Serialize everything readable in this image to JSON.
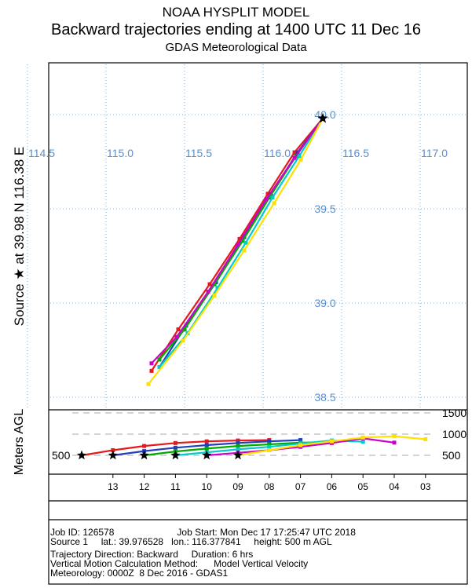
{
  "header": {
    "line1": "NOAA HYSPLIT MODEL",
    "line2": "Backward trajectories ending at 1400 UTC 11 Dec 16",
    "line3": "GDAS Meteorological Data"
  },
  "map_ylabel": "Source ★ at 39.98 N 116.38 E",
  "height_ylabel": "Meters AGL",
  "info": {
    "line1": "Job ID: 126578                        Job Start: Mon Dec 17 17:25:47 UTC 2018",
    "line2": "Source 1     lat.: 39.976528   lon.: 116.377841     height: 500 m AGL",
    "line3": "Trajectory Direction: Backward     Duration: 6 hrs",
    "line4": "Vertical Motion Calculation Method:      Model Vertical Velocity",
    "line5": "Meteorology: 0000Z  8 Dec 2016 - GDAS1"
  },
  "chart_data": [
    {
      "type": "line",
      "name": "trajectory map",
      "lon_ticks": [
        "114.5",
        "115.0",
        "115.5",
        "116.0",
        "116.5",
        "117.0"
      ],
      "lat_ticks": [
        "40.0",
        "39.5",
        "39.0",
        "38.5"
      ],
      "source": {
        "lon": 116.38,
        "lat": 39.98
      },
      "series": [
        {
          "color": "#e41a1c",
          "points": [
            [
              116.38,
              39.98
            ],
            [
              116.2,
              39.8
            ],
            [
              116.03,
              39.58
            ],
            [
              115.85,
              39.34
            ],
            [
              115.66,
              39.1
            ],
            [
              115.46,
              38.86
            ],
            [
              115.29,
              38.64
            ]
          ]
        },
        {
          "color": "#1f3fbf",
          "points": [
            [
              116.38,
              39.98
            ],
            [
              116.22,
              39.8
            ],
            [
              116.05,
              39.58
            ],
            [
              115.88,
              39.35
            ],
            [
              115.7,
              39.11
            ],
            [
              115.51,
              38.88
            ],
            [
              115.34,
              38.66
            ]
          ]
        },
        {
          "color": "#00aa00",
          "points": [
            [
              116.38,
              39.98
            ],
            [
              116.21,
              39.78
            ],
            [
              116.04,
              39.56
            ],
            [
              115.87,
              39.33
            ],
            [
              115.69,
              39.1
            ],
            [
              115.5,
              38.86
            ],
            [
              115.34,
              38.7
            ]
          ]
        },
        {
          "color": "#00cccc",
          "points": [
            [
              116.38,
              39.98
            ],
            [
              116.23,
              39.78
            ],
            [
              116.06,
              39.56
            ],
            [
              115.89,
              39.32
            ],
            [
              115.71,
              39.08
            ],
            [
              115.52,
              38.84
            ],
            [
              115.34,
              38.66
            ]
          ]
        },
        {
          "color": "#cc00cc",
          "points": [
            [
              116.38,
              39.98
            ],
            [
              116.2,
              39.77
            ],
            [
              116.02,
              39.55
            ],
            [
              115.84,
              39.31
            ],
            [
              115.65,
              39.06
            ],
            [
              115.45,
              38.82
            ],
            [
              115.29,
              38.68
            ]
          ]
        },
        {
          "color": "#ffe100",
          "points": [
            [
              116.38,
              39.98
            ],
            [
              116.24,
              39.76
            ],
            [
              116.07,
              39.53
            ],
            [
              115.88,
              39.28
            ],
            [
              115.69,
              39.04
            ],
            [
              115.49,
              38.8
            ],
            [
              115.27,
              38.57
            ]
          ]
        }
      ]
    },
    {
      "type": "line",
      "name": "height profile",
      "ylabel": "Meters AGL",
      "y_ticks": [
        "500",
        "1000",
        "1500"
      ],
      "y_tick_left": "500",
      "hour_labels": [
        "13",
        "12",
        "11",
        "10",
        "09",
        "08",
        "07",
        "06",
        "05",
        "04",
        "03"
      ],
      "series": [
        {
          "color": "#e41a1c",
          "start": 0,
          "values": [
            500,
            620,
            720,
            790,
            830,
            850,
            860
          ]
        },
        {
          "color": "#1f3fbf",
          "start": 1,
          "values": [
            500,
            600,
            680,
            740,
            790,
            830,
            860
          ]
        },
        {
          "color": "#00aa00",
          "start": 2,
          "values": [
            500,
            590,
            660,
            720,
            760,
            800,
            810
          ]
        },
        {
          "color": "#00cccc",
          "start": 3,
          "values": [
            500,
            570,
            640,
            700,
            780,
            850,
            820
          ]
        },
        {
          "color": "#cc00cc",
          "start": 4,
          "values": [
            500,
            560,
            620,
            700,
            790,
            900,
            800
          ]
        },
        {
          "color": "#ffe100",
          "start": 5,
          "values": [
            500,
            620,
            740,
            830,
            920,
            950,
            880
          ]
        }
      ]
    }
  ]
}
